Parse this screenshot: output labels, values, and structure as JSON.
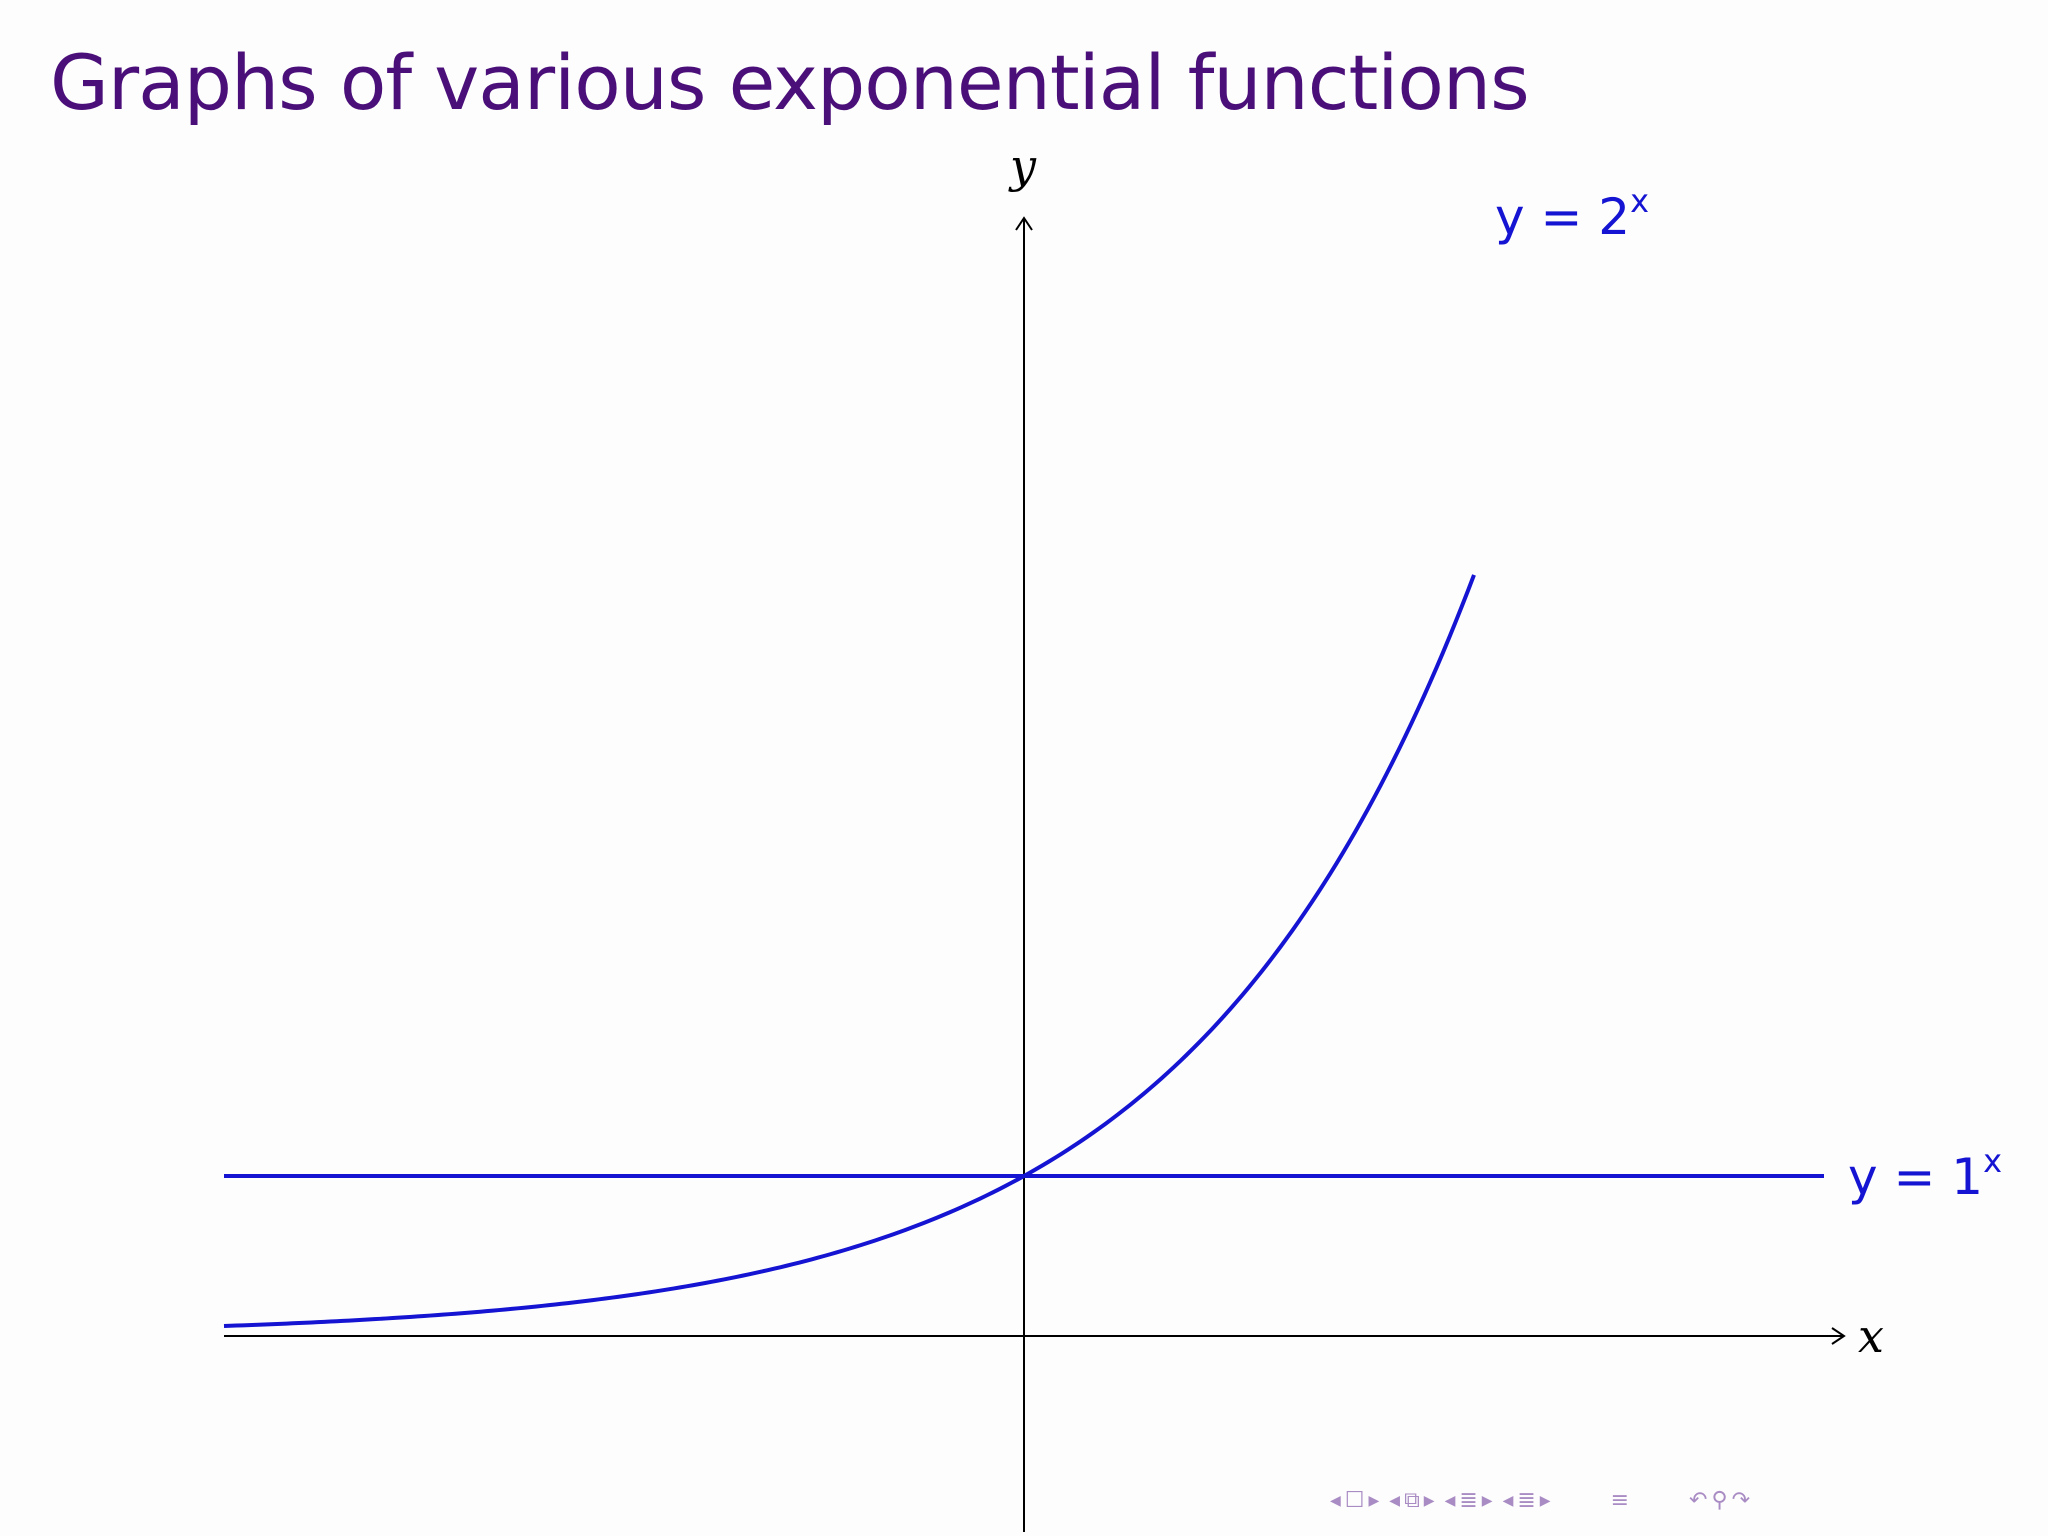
{
  "slide": {
    "title": "Graphs of various exponential functions"
  },
  "colors": {
    "title": "#4b0f7a",
    "curve": "#1414d2",
    "axes": "#000000",
    "nav": "#a98cc4"
  },
  "chart_data": {
    "type": "line",
    "xlabel": "x",
    "ylabel": "y",
    "xlim": [
      -4,
      4
    ],
    "ylim": [
      -1,
      8.5
    ],
    "grid": false,
    "series": [
      {
        "name": "y = 2^x",
        "label_main": "y = 2",
        "label_sup": "x",
        "function": "2^x",
        "x": [
          -4,
          -3.5,
          -3,
          -2.5,
          -2,
          -1.5,
          -1,
          -0.5,
          0,
          0.5,
          1,
          1.5,
          2,
          2.25
        ],
        "values": [
          0.0625,
          0.0884,
          0.125,
          0.1768,
          0.25,
          0.3536,
          0.5,
          0.7071,
          1,
          1.4142,
          2,
          2.8284,
          4,
          4.7568
        ]
      },
      {
        "name": "y = 1^x",
        "label_main": "y = 1",
        "label_sup": "x",
        "function": "1^x",
        "x": [
          -4,
          4
        ],
        "values": [
          1,
          1
        ]
      }
    ]
  },
  "nav": {
    "icons": [
      "frame-prev",
      "frame",
      "frame-next",
      "subsection-prev",
      "subsection",
      "subsection-next",
      "section-prev",
      "section",
      "section-next",
      "slide-prev",
      "slide",
      "slide-next",
      "toc",
      "undo",
      "search",
      "redo"
    ]
  }
}
